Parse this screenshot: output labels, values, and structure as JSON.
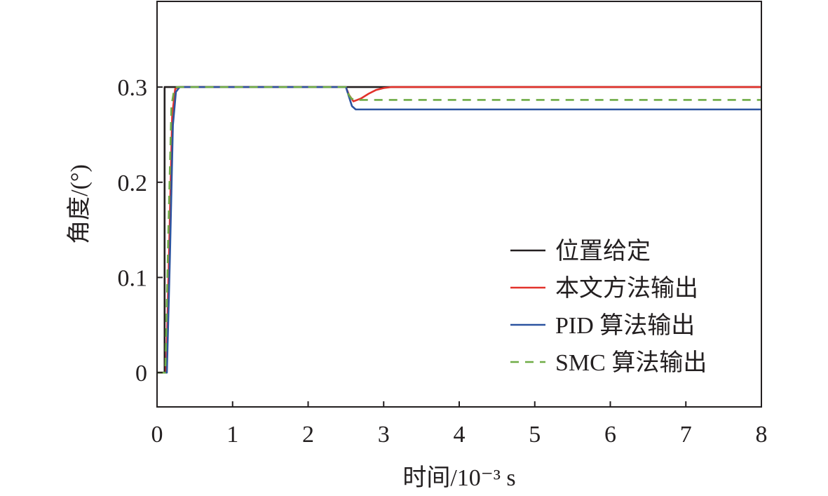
{
  "chart_data": {
    "type": "line",
    "xlabel": "时间/10⁻³ s",
    "ylabel": "角度/(°)",
    "xlim": [
      0,
      8
    ],
    "ylim": [
      -0.036,
      0.39
    ],
    "xticks": [
      "0",
      "1",
      "2",
      "3",
      "4",
      "5",
      "6",
      "7",
      "8"
    ],
    "yticks": [
      "0",
      "0.1",
      "0.2",
      "0.3"
    ],
    "grid": false,
    "legend_position": "lower-right",
    "series": [
      {
        "name": "位置给定",
        "color": "#231f20",
        "style": "solid",
        "x": [
          0,
          0.1,
          0.1,
          8
        ],
        "y": [
          0,
          0,
          0.3,
          0.3
        ]
      },
      {
        "name": "本文方法输出",
        "color": "#e2322b",
        "style": "solid",
        "x": [
          0,
          0.12,
          0.16,
          0.2,
          0.24,
          0.28,
          2.5,
          2.54,
          2.6,
          2.7,
          2.8,
          2.9,
          3.0,
          3.1,
          8
        ],
        "y": [
          0,
          0,
          0.13,
          0.27,
          0.298,
          0.3,
          0.3,
          0.292,
          0.285,
          0.288,
          0.293,
          0.297,
          0.299,
          0.3,
          0.3
        ]
      },
      {
        "name": "PID 算法输出",
        "color": "#2c54a0",
        "style": "solid",
        "x": [
          0,
          0.13,
          0.17,
          0.21,
          0.25,
          0.3,
          2.5,
          2.54,
          2.58,
          2.63,
          2.7,
          8
        ],
        "y": [
          0,
          0,
          0.12,
          0.26,
          0.295,
          0.3,
          0.3,
          0.29,
          0.28,
          0.2765,
          0.2765,
          0.2765
        ]
      },
      {
        "name": "SMC 算法输出",
        "color": "#6fac46",
        "style": "dashed",
        "x": [
          0,
          0.11,
          0.15,
          0.19,
          0.23,
          0.27,
          2.5,
          2.53,
          2.57,
          2.62,
          8
        ],
        "y": [
          0,
          0,
          0.15,
          0.28,
          0.299,
          0.3,
          0.3,
          0.293,
          0.288,
          0.2865,
          0.2865
        ]
      }
    ]
  }
}
